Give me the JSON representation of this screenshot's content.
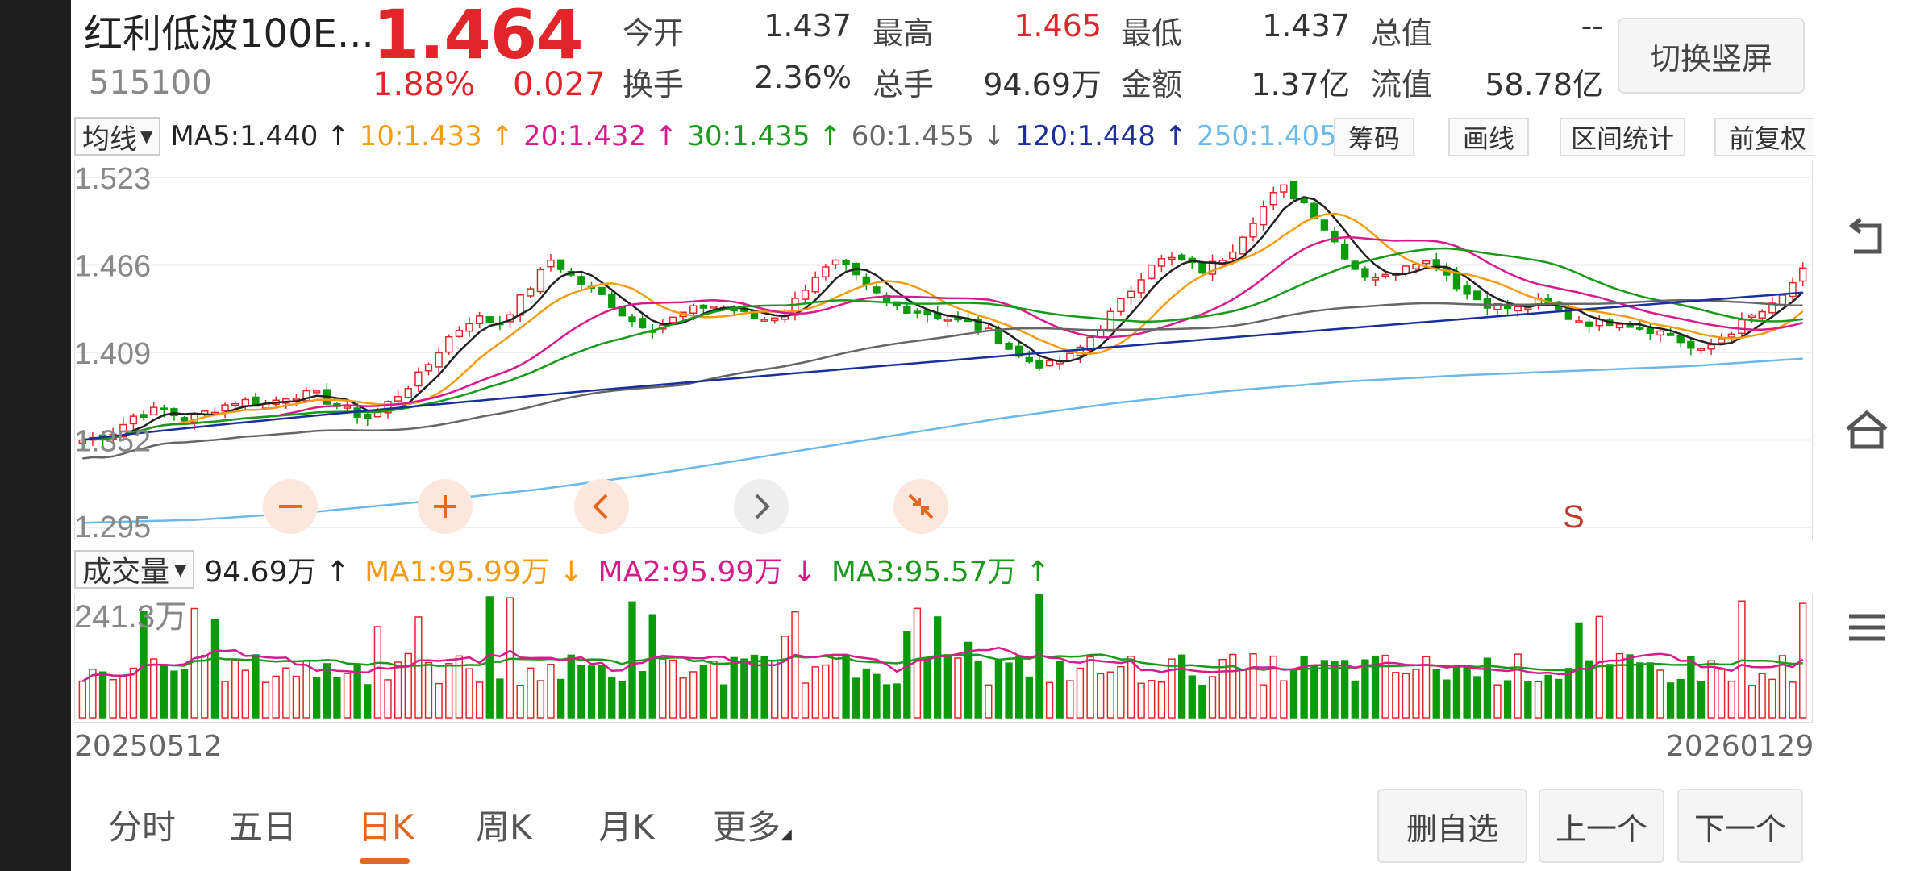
{
  "header": {
    "name": "红利低波100E...",
    "code": "515100",
    "price": "1.464",
    "change_pct": "1.88%",
    "change": "0.027",
    "stats": [
      {
        "label": "今开",
        "value": "1.437",
        "red": false
      },
      {
        "label": "最高",
        "value": "1.465",
        "red": true
      },
      {
        "label": "最低",
        "value": "1.437",
        "red": false
      },
      {
        "label": "总值",
        "value": "--",
        "red": false
      },
      {
        "label": "换手",
        "value": "2.36%",
        "red": false
      },
      {
        "label": "总手",
        "value": "94.69万",
        "red": false
      },
      {
        "label": "金额",
        "value": "1.37亿",
        "red": false
      },
      {
        "label": "流值",
        "value": "58.78亿",
        "red": false
      }
    ],
    "switch_label": "切换竖屏"
  },
  "ma_bar": {
    "type_label": "均线",
    "items": [
      {
        "text": "MA5:1.440 ↑",
        "color": "#222222"
      },
      {
        "text": "10:1.433 ↑",
        "color": "#f39c12"
      },
      {
        "text": "20:1.432 ↑",
        "color": "#d81b8c"
      },
      {
        "text": "30:1.435 ↑",
        "color": "#1a9a1a"
      },
      {
        "text": "60:1.455 ↓",
        "color": "#666666"
      },
      {
        "text": "120:1.448 ↑",
        "color": "#1a2f9a"
      },
      {
        "text": "250:1.405 ↑",
        "color": "#6ab9e8"
      }
    ],
    "tools": [
      "筹码",
      "画线",
      "区间统计",
      "前复权"
    ]
  },
  "price_axis": [
    "1.523",
    "1.466",
    "1.409",
    "1.352",
    "1.295"
  ],
  "signal_label": "S",
  "volume_bar": {
    "type_label": "成交量",
    "current": "94.69万 ↑",
    "ma1": "MA1:95.99万 ↓",
    "ma2": "MA2:95.99万 ↓",
    "ma3": "MA3:95.57万 ↑",
    "max_label": "241.3万"
  },
  "dates": {
    "start": "20250512",
    "end": "20260129"
  },
  "tabs": [
    "分时",
    "五日",
    "日K",
    "周K",
    "月K",
    "更多"
  ],
  "bottom_buttons": [
    "删自选",
    "上一个",
    "下一个"
  ],
  "colors": {
    "up": "#e0262a",
    "down": "#0a9a0a",
    "accent": "#e8671e"
  },
  "icons": [
    "back-icon",
    "home-icon",
    "menu-icon",
    "zoom-out-icon",
    "zoom-in-icon",
    "pan-left-icon",
    "pan-right-icon",
    "reset-zoom-icon"
  ],
  "chart_data": {
    "type": "candlestick",
    "ylim": [
      1.295,
      1.523
    ],
    "x": [
      "20250512",
      "20260129"
    ],
    "close_path": [
      1.352,
      1.355,
      1.368,
      1.372,
      1.365,
      1.372,
      1.378,
      1.375,
      1.382,
      1.381,
      1.372,
      1.366,
      1.38,
      1.395,
      1.418,
      1.432,
      1.428,
      1.448,
      1.47,
      1.455,
      1.445,
      1.43,
      1.425,
      1.434,
      1.44,
      1.437,
      1.43,
      1.435,
      1.458,
      1.468,
      1.452,
      1.44,
      1.436,
      1.432,
      1.428,
      1.42,
      1.405,
      1.4,
      1.407,
      1.425,
      1.445,
      1.468,
      1.47,
      1.462,
      1.474,
      1.498,
      1.517,
      1.505,
      1.482,
      1.46,
      1.458,
      1.47,
      1.466,
      1.448,
      1.44,
      1.437,
      1.442,
      1.432,
      1.428,
      1.43,
      1.425,
      1.42,
      1.408,
      1.42,
      1.432,
      1.44,
      1.464
    ],
    "ma250_path": [
      1.298,
      1.3,
      1.305,
      1.312,
      1.32,
      1.33,
      1.342,
      1.354,
      1.366,
      1.376,
      1.384,
      1.39,
      1.394,
      1.397,
      1.4,
      1.405
    ]
  }
}
